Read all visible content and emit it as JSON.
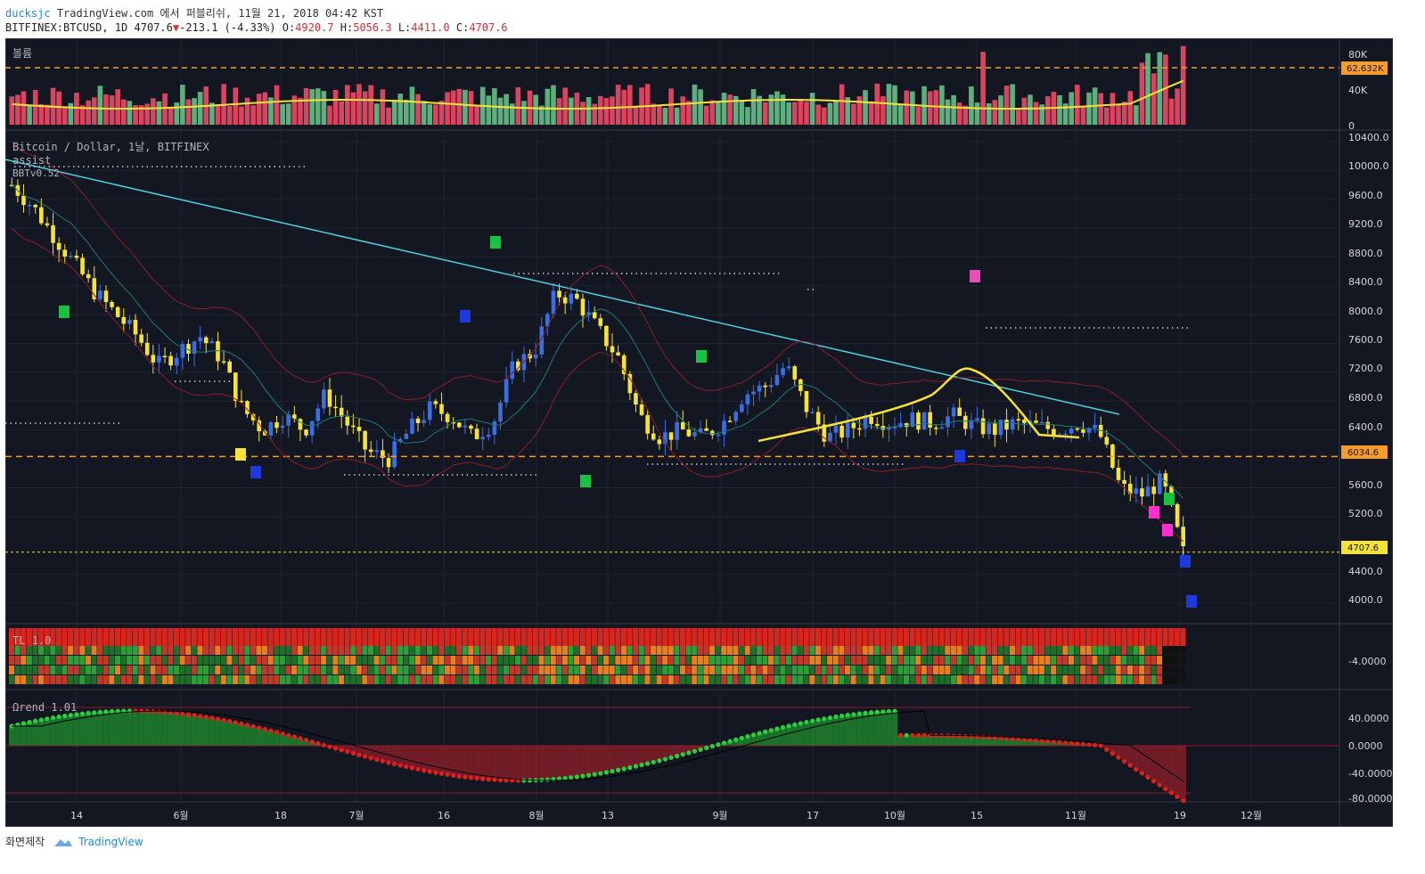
{
  "header": {
    "user": "ducksjc",
    "published": "TradingView.com 에서 퍼블리쉬, 11월 21, 2018 04:42 KST",
    "symbol": "BITFINEX:BTCUSD, 1D",
    "last": "4707.6",
    "change_arrow": "▼",
    "change": "-213.1 (-4.33%)",
    "o_label": "O:",
    "o_value": "4920.7",
    "h_label": "H:",
    "h_value": "5056.3",
    "l_label": "L:",
    "l_value": "4411.0",
    "c_label": "C:",
    "c_value": "4707.6"
  },
  "volume_pane": {
    "title": "볼륨",
    "axis_labels": [
      "80K",
      "40K",
      "0"
    ],
    "ma_badge": "62.632K"
  },
  "price_pane": {
    "title": "Bitcoin / Dollar, 1날, BITFINEX",
    "indicator1": "assist",
    "indicator2": "BBTv0.52",
    "axis_labels": [
      "10400.0",
      "10000.0",
      "9600.0",
      "9200.0",
      "8800.0",
      "8400.0",
      "8000.0",
      "7600.0",
      "7200.0",
      "6800.0",
      "6400.0",
      "5600.0",
      "5200.0",
      "4400.0",
      "4000.0"
    ],
    "support_badge": "6034.6",
    "last_badge": "4707.6"
  },
  "tl_pane": {
    "title": "TL 1.0",
    "axis_labels": [
      "-4.0000"
    ]
  },
  "trend_pane": {
    "title": "Ωrend 1.01",
    "axis_labels": [
      "40.0000",
      "0.0000",
      "-40.0000",
      "-80.0000"
    ]
  },
  "time_axis": [
    "14",
    "6월",
    "18",
    "7월",
    "16",
    "8월",
    "13",
    "9월",
    "17",
    "10월",
    "15",
    "11월",
    "19",
    "12월"
  ],
  "footer": {
    "made_with": "화면제작",
    "brand": "TradingView"
  },
  "colors": {
    "background": "#131722",
    "up": "#3d6ee0",
    "down": "#f5e23a",
    "vol_up": "#5fae7e",
    "vol_down": "#d9455f",
    "trendline": "#4dd0e1",
    "support": "#f59c2c",
    "last_price": "#f5e23a"
  },
  "chart_data": {
    "type": "candlestick",
    "symbol": "BITFINEX:BTCUSD",
    "interval": "1D",
    "ylim": [
      3800,
      10500
    ],
    "yticks": [
      10400,
      10000,
      9600,
      9200,
      8800,
      8400,
      8000,
      7600,
      7200,
      6800,
      6400,
      5600,
      5200,
      4400,
      4000
    ],
    "support_level": 6034.6,
    "last_price": 4707.6,
    "volume_ma": "62.632K",
    "close_path": [
      9800,
      9500,
      9100,
      8700,
      8300,
      8000,
      7700,
      7300,
      7500,
      7700,
      7400,
      6700,
      6400,
      6600,
      6400,
      6900,
      6500,
      6100,
      6000,
      6400,
      6700,
      6600,
      6300,
      6500,
      7300,
      7500,
      8300,
      8200,
      7800,
      7400,
      6600,
      6300,
      6400,
      6300,
      6500,
      6900,
      7000,
      7300,
      6700,
      6300,
      6400,
      6600,
      6500,
      6550,
      6500,
      6600,
      6450,
      6400,
      6500,
      6450,
      6400,
      6500,
      6350,
      5600,
      5500,
      5700,
      4700
    ]
  }
}
